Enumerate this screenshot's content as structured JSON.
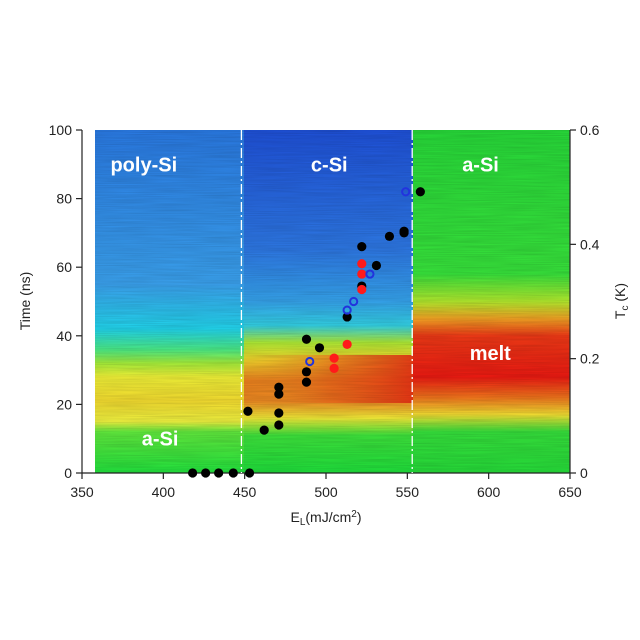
{
  "chart_data": {
    "type": "heatmap",
    "xlabel": "E",
    "xlabel_sub": "L",
    "xlabel_unit": "(mJ/cm",
    "xlabel_sup": "2",
    "xlabel_end": ")",
    "ylabel": "Time (ns)",
    "y2label": "T",
    "y2label_sub": "c",
    "y2label_unit": " (K)",
    "xlim": [
      350,
      650
    ],
    "ylim": [
      0,
      100
    ],
    "y2lim": [
      0,
      0.6
    ],
    "xticks": [
      "350",
      "400",
      "450",
      "500",
      "550",
      "600",
      "650"
    ],
    "yticks": [
      "0",
      "20",
      "40",
      "60",
      "80",
      "100"
    ],
    "y2ticks": [
      "0",
      "0.2",
      "0.4",
      "0.6"
    ],
    "boundaries": [
      448,
      553
    ],
    "region_labels": [
      {
        "text": "poly-Si",
        "x": 388,
        "y": 90
      },
      {
        "text": "c-Si",
        "x": 502,
        "y": 90
      },
      {
        "text": "a-Si",
        "x": 595,
        "y": 90
      },
      {
        "text": "melt",
        "x": 601,
        "y": 35
      },
      {
        "text": "a-Si",
        "x": 398,
        "y": 10
      }
    ],
    "series": [
      {
        "color": "#000000",
        "style": "filled",
        "points": [
          [
            418,
            0
          ],
          [
            426,
            0
          ],
          [
            434,
            0
          ],
          [
            443,
            0
          ],
          [
            453,
            0
          ],
          [
            452,
            18
          ],
          [
            462,
            12.5
          ],
          [
            471,
            14
          ],
          [
            471,
            17.5
          ],
          [
            471,
            23
          ],
          [
            471,
            25
          ],
          [
            488,
            26.5
          ],
          [
            488,
            29.5
          ],
          [
            488,
            39
          ],
          [
            496,
            36.5
          ],
          [
            513,
            45.5
          ],
          [
            522,
            54.5
          ],
          [
            522,
            66
          ],
          [
            531,
            60.5
          ],
          [
            539,
            69
          ],
          [
            548,
            70.5
          ],
          [
            548,
            70
          ],
          [
            558,
            82
          ]
        ]
      },
      {
        "color": "#ff1a1a",
        "style": "filled",
        "points": [
          [
            505,
            30.5
          ],
          [
            505,
            33.5
          ],
          [
            513,
            37.5
          ],
          [
            522,
            53.5
          ],
          [
            522,
            58
          ],
          [
            522,
            61
          ]
        ]
      },
      {
        "color": "#2233dd",
        "style": "open",
        "points": [
          [
            490,
            32.5
          ],
          [
            513,
            47.5
          ],
          [
            517,
            50
          ],
          [
            527,
            58
          ],
          [
            549,
            82
          ]
        ]
      }
    ]
  }
}
